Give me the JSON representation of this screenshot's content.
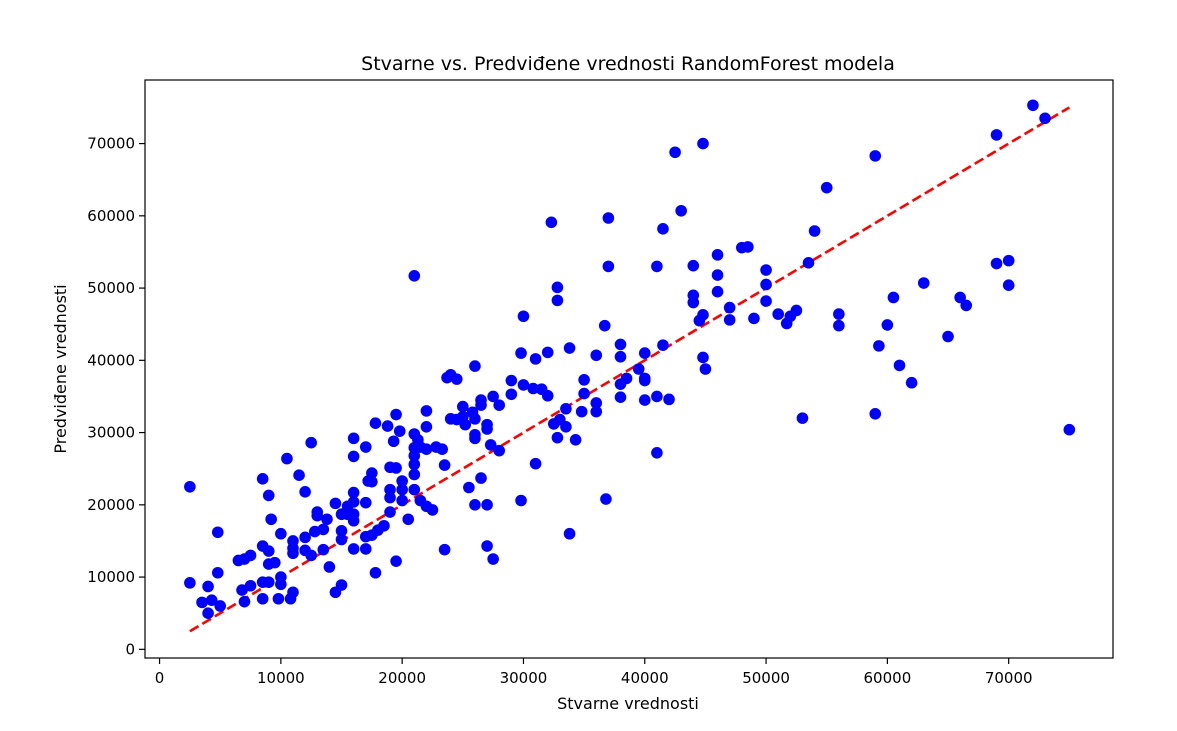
{
  "chart_data": {
    "type": "scatter",
    "title": "Stvarne vs. Predviđene vrednosti RandomForest modela",
    "xlabel": "Stvarne vrednosti",
    "ylabel": "Predviđene vrednosti",
    "xlim": [
      -1200,
      78600
    ],
    "ylim": [
      -1200,
      78800
    ],
    "xticks": [
      0,
      10000,
      20000,
      30000,
      40000,
      50000,
      60000,
      70000
    ],
    "yticks": [
      0,
      10000,
      20000,
      30000,
      40000,
      50000,
      60000,
      70000
    ],
    "xtick_labels": [
      "0",
      "10000",
      "20000",
      "30000",
      "40000",
      "50000",
      "60000",
      "70000"
    ],
    "ytick_labels": [
      "0",
      "10000",
      "20000",
      "30000",
      "40000",
      "50000",
      "60000",
      "70000"
    ],
    "grid": false,
    "point_color": "#0000ff",
    "line_color": "#ff0000",
    "reference_line": {
      "x": [
        2500,
        75000
      ],
      "y": [
        2500,
        75000
      ],
      "style": "dashed"
    },
    "points": [
      [
        2500,
        22500
      ],
      [
        2500,
        9200
      ],
      [
        3500,
        6500
      ],
      [
        4000,
        8700
      ],
      [
        4000,
        5000
      ],
      [
        4300,
        6800
      ],
      [
        4800,
        16200
      ],
      [
        4800,
        10600
      ],
      [
        5000,
        6000
      ],
      [
        6500,
        12300
      ],
      [
        6800,
        8200
      ],
      [
        7000,
        6600
      ],
      [
        7000,
        12500
      ],
      [
        7500,
        13000
      ],
      [
        7500,
        8800
      ],
      [
        8500,
        23600
      ],
      [
        8500,
        14300
      ],
      [
        8500,
        9300
      ],
      [
        8500,
        7000
      ],
      [
        9000,
        21300
      ],
      [
        9000,
        13600
      ],
      [
        9000,
        11800
      ],
      [
        9000,
        9300
      ],
      [
        9200,
        18000
      ],
      [
        9500,
        12000
      ],
      [
        9800,
        7000
      ],
      [
        10000,
        16000
      ],
      [
        10000,
        10000
      ],
      [
        10000,
        9000
      ],
      [
        10500,
        26400
      ],
      [
        10800,
        7000
      ],
      [
        11000,
        15000
      ],
      [
        11000,
        14000
      ],
      [
        11000,
        13300
      ],
      [
        11000,
        7900
      ],
      [
        11500,
        24100
      ],
      [
        12000,
        21800
      ],
      [
        12000,
        15500
      ],
      [
        12000,
        13700
      ],
      [
        12500,
        28600
      ],
      [
        12500,
        13000
      ],
      [
        12800,
        16300
      ],
      [
        13000,
        19000
      ],
      [
        13000,
        18500
      ],
      [
        13500,
        16600
      ],
      [
        13500,
        13800
      ],
      [
        13800,
        18000
      ],
      [
        14000,
        11400
      ],
      [
        14500,
        20200
      ],
      [
        14500,
        7900
      ],
      [
        15000,
        18700
      ],
      [
        15000,
        16400
      ],
      [
        15000,
        15200
      ],
      [
        15000,
        8900
      ],
      [
        15500,
        19800
      ],
      [
        15500,
        18700
      ],
      [
        16000,
        29200
      ],
      [
        16000,
        26700
      ],
      [
        16000,
        21700
      ],
      [
        16000,
        20400
      ],
      [
        16000,
        18700
      ],
      [
        16000,
        17800
      ],
      [
        16000,
        13900
      ],
      [
        17000,
        28000
      ],
      [
        17000,
        20300
      ],
      [
        17000,
        15600
      ],
      [
        17000,
        13900
      ],
      [
        17200,
        23300
      ],
      [
        17500,
        24400
      ],
      [
        17500,
        23200
      ],
      [
        17500,
        15800
      ],
      [
        17800,
        31300
      ],
      [
        17800,
        10600
      ],
      [
        18000,
        16500
      ],
      [
        18500,
        17100
      ],
      [
        18800,
        30900
      ],
      [
        19000,
        25200
      ],
      [
        19000,
        22100
      ],
      [
        19000,
        21000
      ],
      [
        19000,
        19000
      ],
      [
        19300,
        28800
      ],
      [
        19500,
        32500
      ],
      [
        19500,
        25100
      ],
      [
        19500,
        12200
      ],
      [
        19800,
        30200
      ],
      [
        20000,
        23300
      ],
      [
        20000,
        22100
      ],
      [
        20000,
        20600
      ],
      [
        20500,
        18000
      ],
      [
        21000,
        51700
      ],
      [
        21000,
        29800
      ],
      [
        21000,
        27900
      ],
      [
        21000,
        26800
      ],
      [
        21000,
        25600
      ],
      [
        21000,
        24200
      ],
      [
        21000,
        22100
      ],
      [
        21300,
        29000
      ],
      [
        21500,
        28000
      ],
      [
        21500,
        20600
      ],
      [
        22000,
        33000
      ],
      [
        22000,
        30800
      ],
      [
        22000,
        27700
      ],
      [
        22000,
        19800
      ],
      [
        22500,
        19300
      ],
      [
        22800,
        28000
      ],
      [
        23300,
        27700
      ],
      [
        23500,
        25500
      ],
      [
        23500,
        13800
      ],
      [
        23700,
        37600
      ],
      [
        24000,
        31900
      ],
      [
        24000,
        38000
      ],
      [
        24500,
        37400
      ],
      [
        24500,
        31800
      ],
      [
        25000,
        33600
      ],
      [
        25000,
        32200
      ],
      [
        25200,
        31100
      ],
      [
        25500,
        22400
      ],
      [
        25800,
        32800
      ],
      [
        26000,
        39200
      ],
      [
        26000,
        31900
      ],
      [
        26000,
        29700
      ],
      [
        26000,
        29200
      ],
      [
        26000,
        20000
      ],
      [
        26500,
        34500
      ],
      [
        26500,
        33800
      ],
      [
        26500,
        23700
      ],
      [
        27000,
        31100
      ],
      [
        27000,
        30500
      ],
      [
        27000,
        20000
      ],
      [
        27000,
        14300
      ],
      [
        27300,
        28300
      ],
      [
        27500,
        35000
      ],
      [
        27500,
        12500
      ],
      [
        28000,
        33800
      ],
      [
        28000,
        27500
      ],
      [
        29000,
        37200
      ],
      [
        29000,
        35300
      ],
      [
        29800,
        41000
      ],
      [
        29800,
        20600
      ],
      [
        30000,
        46100
      ],
      [
        30000,
        36600
      ],
      [
        30800,
        36100
      ],
      [
        31000,
        40200
      ],
      [
        31000,
        25700
      ],
      [
        31500,
        36000
      ],
      [
        32000,
        41100
      ],
      [
        32000,
        35100
      ],
      [
        32300,
        59100
      ],
      [
        32500,
        31200
      ],
      [
        32800,
        50100
      ],
      [
        32800,
        48300
      ],
      [
        32800,
        29300
      ],
      [
        33000,
        31800
      ],
      [
        33500,
        33300
      ],
      [
        33500,
        30800
      ],
      [
        33800,
        41700
      ],
      [
        33800,
        16000
      ],
      [
        34300,
        29000
      ],
      [
        34800,
        32900
      ],
      [
        35000,
        37300
      ],
      [
        35000,
        35400
      ],
      [
        36000,
        40700
      ],
      [
        36000,
        34100
      ],
      [
        36000,
        32900
      ],
      [
        36700,
        44800
      ],
      [
        36800,
        20800
      ],
      [
        37000,
        59700
      ],
      [
        37000,
        53000
      ],
      [
        38000,
        42200
      ],
      [
        38000,
        40500
      ],
      [
        38000,
        36700
      ],
      [
        38000,
        34900
      ],
      [
        38500,
        37500
      ],
      [
        39500,
        38800
      ],
      [
        40000,
        41000
      ],
      [
        40000,
        37500
      ],
      [
        40000,
        37200
      ],
      [
        40000,
        34500
      ],
      [
        41000,
        53000
      ],
      [
        41000,
        35000
      ],
      [
        41000,
        27200
      ],
      [
        41500,
        58200
      ],
      [
        41500,
        42100
      ],
      [
        42000,
        34600
      ],
      [
        42500,
        68800
      ],
      [
        43000,
        60700
      ],
      [
        44000,
        53100
      ],
      [
        44000,
        49000
      ],
      [
        44000,
        48000
      ],
      [
        44500,
        45500
      ],
      [
        44800,
        70000
      ],
      [
        44800,
        46300
      ],
      [
        44800,
        40400
      ],
      [
        45000,
        38800
      ],
      [
        46000,
        54600
      ],
      [
        46000,
        51800
      ],
      [
        46000,
        49500
      ],
      [
        47000,
        47300
      ],
      [
        47000,
        45600
      ],
      [
        48000,
        55600
      ],
      [
        48500,
        55700
      ],
      [
        49000,
        45800
      ],
      [
        50000,
        52500
      ],
      [
        50000,
        50500
      ],
      [
        50000,
        48200
      ],
      [
        51000,
        46400
      ],
      [
        51700,
        45100
      ],
      [
        52000,
        46100
      ],
      [
        52500,
        46900
      ],
      [
        53000,
        32000
      ],
      [
        53500,
        53500
      ],
      [
        54000,
        57900
      ],
      [
        55000,
        63900
      ],
      [
        56000,
        46400
      ],
      [
        56000,
        44800
      ],
      [
        59000,
        68300
      ],
      [
        59000,
        32600
      ],
      [
        59300,
        42000
      ],
      [
        60000,
        44900
      ],
      [
        60500,
        48700
      ],
      [
        61000,
        39300
      ],
      [
        62000,
        36900
      ],
      [
        63000,
        50700
      ],
      [
        65000,
        43300
      ],
      [
        66000,
        48700
      ],
      [
        66500,
        47600
      ],
      [
        69000,
        71200
      ],
      [
        69000,
        53400
      ],
      [
        70000,
        53800
      ],
      [
        70000,
        50400
      ],
      [
        72000,
        75300
      ],
      [
        73000,
        73500
      ],
      [
        75000,
        30400
      ]
    ]
  }
}
